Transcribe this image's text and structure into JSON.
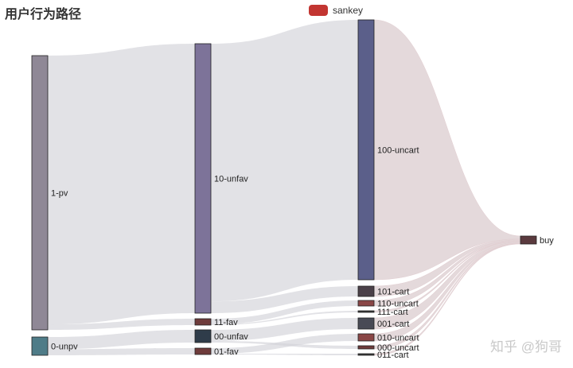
{
  "chart_data": {
    "type": "sankey",
    "title": "用户行为路径",
    "legend": {
      "entries": [
        "sankey"
      ],
      "position": "top-center",
      "color": "#c23531"
    },
    "nodes": [
      {
        "name": "1-pv",
        "color": "#8f8896"
      },
      {
        "name": "0-unpv",
        "color": "#4f7c88"
      },
      {
        "name": "10-unfav",
        "color": "#7d7399"
      },
      {
        "name": "11-fav",
        "color": "#6e3b3b"
      },
      {
        "name": "00-unfav",
        "color": "#2f3c4a"
      },
      {
        "name": "01-fav",
        "color": "#6e3b3b"
      },
      {
        "name": "100-uncart",
        "color": "#5b5f8a"
      },
      {
        "name": "101-cart",
        "color": "#4a4048"
      },
      {
        "name": "110-uncart",
        "color": "#8a4646"
      },
      {
        "name": "111-cart",
        "color": "#3a3a3a"
      },
      {
        "name": "001-cart",
        "color": "#484a55"
      },
      {
        "name": "010-uncart",
        "color": "#8a4646"
      },
      {
        "name": "000-uncart",
        "color": "#6e3b3b"
      },
      {
        "name": "011-cart",
        "color": "#3a3a3a"
      },
      {
        "name": "buy",
        "color": "#5a3a3e"
      }
    ],
    "links": [
      {
        "source": "1-pv",
        "target": "10-unfav",
        "value": 343
      },
      {
        "source": "1-pv",
        "target": "11-fav",
        "value": 7
      },
      {
        "source": "0-unpv",
        "target": "00-unfav",
        "value": 16
      },
      {
        "source": "0-unpv",
        "target": "01-fav",
        "value": 8
      },
      {
        "source": "10-unfav",
        "target": "100-uncart",
        "value": 328
      },
      {
        "source": "10-unfav",
        "target": "101-cart",
        "value": 15
      },
      {
        "source": "11-fav",
        "target": "110-uncart",
        "value": 6
      },
      {
        "source": "11-fav",
        "target": "111-cart",
        "value": 1
      },
      {
        "source": "00-unfav",
        "target": "001-cart",
        "value": 14
      },
      {
        "source": "00-unfav",
        "target": "000-uncart",
        "value": 2
      },
      {
        "source": "01-fav",
        "target": "010-uncart",
        "value": 7
      },
      {
        "source": "01-fav",
        "target": "011-cart",
        "value": 1
      },
      {
        "source": "100-uncart",
        "target": "buy",
        "value": 3
      },
      {
        "source": "101-cart",
        "target": "buy",
        "value": 1
      },
      {
        "source": "110-uncart",
        "target": "buy",
        "value": 1
      },
      {
        "source": "111-cart",
        "target": "buy",
        "value": 0.5
      },
      {
        "source": "001-cart",
        "target": "buy",
        "value": 1
      },
      {
        "source": "010-uncart",
        "target": "buy",
        "value": 1
      },
      {
        "source": "000-uncart",
        "target": "buy",
        "value": 0.5
      },
      {
        "source": "011-cart",
        "target": "buy",
        "value": 0.5
      }
    ]
  },
  "watermark": "知乎 @狗哥"
}
